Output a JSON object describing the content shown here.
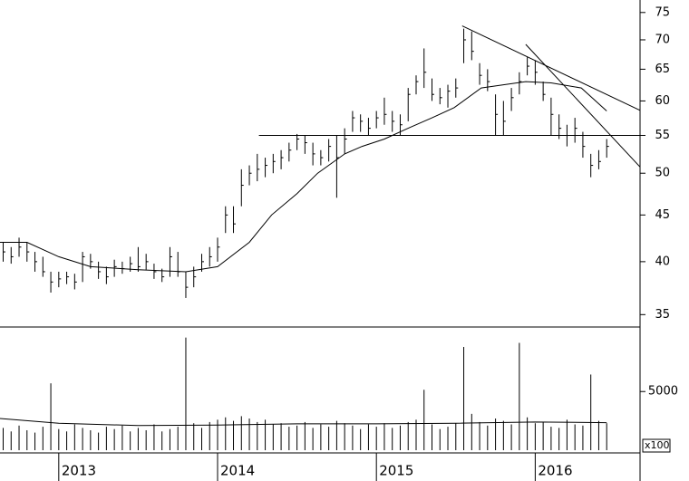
{
  "chart_data": {
    "type": "ohlc",
    "log_scale": true,
    "color": "#000000",
    "x": [
      2012.65,
      2012.7,
      2012.75,
      2012.8,
      2012.85,
      2012.9,
      2012.95,
      2013.0,
      2013.05,
      2013.1,
      2013.15,
      2013.2,
      2013.25,
      2013.3,
      2013.35,
      2013.4,
      2013.45,
      2013.5,
      2013.55,
      2013.6,
      2013.65,
      2013.7,
      2013.75,
      2013.8,
      2013.85,
      2013.9,
      2013.95,
      2014.0,
      2014.05,
      2014.1,
      2014.15,
      2014.2,
      2014.25,
      2014.3,
      2014.35,
      2014.4,
      2014.45,
      2014.5,
      2014.55,
      2014.6,
      2014.65,
      2014.7,
      2014.75,
      2014.8,
      2014.85,
      2014.9,
      2014.95,
      2015.0,
      2015.05,
      2015.1,
      2015.15,
      2015.2,
      2015.25,
      2015.3,
      2015.35,
      2015.4,
      2015.45,
      2015.5,
      2015.55,
      2015.6,
      2015.65,
      2015.7,
      2015.75,
      2015.8,
      2015.85,
      2015.9,
      2015.95,
      2016.0,
      2016.05,
      2016.1,
      2016.15,
      2016.2,
      2016.25,
      2016.3,
      2016.35,
      2016.4,
      2016.45
    ],
    "high": [
      42,
      41.5,
      42.5,
      42,
      41,
      40.5,
      39,
      39,
      39,
      38.8,
      41,
      40.8,
      40,
      39.5,
      40.2,
      40,
      40.5,
      41.5,
      40.8,
      39.8,
      39.3,
      41.5,
      41,
      39,
      39.5,
      40.8,
      41.5,
      42.5,
      46,
      46,
      50.5,
      51,
      52.5,
      52,
      52.5,
      53,
      54,
      55.2,
      55,
      54,
      53,
      54.5,
      55,
      56,
      58.5,
      58,
      57.5,
      58.5,
      60.5,
      58.5,
      58,
      62,
      64,
      68.5,
      63.5,
      62,
      62.5,
      63.5,
      72,
      71.5,
      66,
      65,
      61,
      60,
      62,
      64.5,
      67,
      66.5,
      63,
      60.5,
      58,
      56.5,
      57.5,
      55.5,
      52.5,
      53,
      54.5
    ],
    "low": [
      40,
      39.8,
      40.5,
      40,
      39,
      38.5,
      37,
      37.5,
      37.8,
      37.3,
      38,
      39.3,
      38.3,
      37.8,
      38.5,
      38.8,
      39,
      39,
      39.2,
      38.3,
      38,
      38.5,
      38.5,
      36.5,
      37.5,
      39,
      39.5,
      40,
      43,
      43,
      46,
      48.5,
      49,
      49.5,
      50,
      50.5,
      51.5,
      53,
      52.5,
      51,
      51,
      51.5,
      47,
      52.5,
      55.5,
      55.5,
      55,
      56,
      56.5,
      55.5,
      55,
      57,
      61,
      62,
      60,
      59.5,
      59,
      60.5,
      66,
      66.5,
      62.5,
      61.5,
      55,
      55,
      58.5,
      61,
      64,
      62.5,
      60,
      55,
      54.5,
      53.5,
      54,
      52,
      49.5,
      50.5,
      52
    ],
    "close": [
      41,
      40.5,
      41.5,
      41,
      40,
      39,
      38,
      38.3,
      38.5,
      38,
      40.5,
      40,
      39,
      38.5,
      39.5,
      39.3,
      39.8,
      39.5,
      40,
      39,
      38.5,
      40.5,
      39,
      37.5,
      38.5,
      40,
      40.5,
      41.5,
      45,
      44,
      48.5,
      50,
      50.5,
      51,
      51.5,
      52,
      53,
      54.5,
      54,
      52.5,
      52,
      53.5,
      52,
      54.5,
      57.5,
      57,
      56,
      57.5,
      58,
      57,
      56.5,
      61,
      63,
      64.5,
      61,
      60.5,
      61.5,
      62,
      70,
      68,
      64,
      63,
      58,
      57,
      60.5,
      63,
      65.5,
      64.5,
      61,
      58,
      56,
      55,
      56,
      53.5,
      51,
      51.5,
      53.5
    ],
    "volume": [
      1900,
      1600,
      2100,
      1700,
      1500,
      2000,
      5700,
      1800,
      1600,
      2200,
      1900,
      1700,
      1500,
      2000,
      1800,
      2100,
      1600,
      1900,
      1700,
      2200,
      1600,
      1800,
      2000,
      9600,
      2300,
      1900,
      2400,
      2600,
      2800,
      2500,
      2900,
      2700,
      2400,
      2600,
      2200,
      2300,
      2000,
      2100,
      2400,
      1900,
      2200,
      2000,
      2500,
      2300,
      2100,
      1800,
      2200,
      2000,
      2300,
      1900,
      2100,
      2400,
      2600,
      5150,
      2200,
      1800,
      2000,
      2300,
      8800,
      3100,
      2400,
      2100,
      2700,
      2500,
      2200,
      9150,
      2800,
      2300,
      2400,
      2000,
      1900,
      2600,
      2200,
      2100,
      6450,
      2500,
      2300
    ],
    "ma": {
      "x": [
        2012.63,
        2012.8,
        2013.0,
        2013.2,
        2013.5,
        2013.8,
        2014.0,
        2014.2,
        2014.34,
        2014.5,
        2014.63,
        2014.8,
        2014.91,
        2015.05,
        2015.2,
        2015.35,
        2015.49,
        2015.66,
        2015.8,
        2015.94,
        2016.1,
        2016.29,
        2016.45
      ],
      "values": [
        42,
        42,
        40.5,
        39.5,
        39.2,
        39,
        39.5,
        42,
        45,
        47.5,
        50,
        52.5,
        53.5,
        54.5,
        56,
        57.5,
        59,
        62,
        62.5,
        63,
        62.8,
        62,
        58.5
      ]
    },
    "vol_ma": {
      "x": [
        2012.63,
        2013.0,
        2013.5,
        2014.0,
        2014.5,
        2015.0,
        2015.5,
        2016.0,
        2016.45
      ],
      "values": [
        2700,
        2300,
        2100,
        2150,
        2250,
        2250,
        2300,
        2400,
        2350
      ]
    },
    "lines": [
      {
        "x": [
          2015.54,
          2016.66
        ],
        "values": [
          72.5,
          58.6
        ]
      },
      {
        "x": [
          2015.94,
          2016.66
        ],
        "values": [
          69.2,
          50.8
        ]
      },
      {
        "x": [
          2014.26,
          2016.66
        ],
        "values": [
          55,
          55
        ]
      }
    ],
    "xlim": [
      2012.63,
      2016.66
    ],
    "xticks": [
      2013,
      2014,
      2015,
      2016
    ],
    "ylim": [
      34,
      77.4
    ],
    "yticks": [
      35,
      40,
      45,
      50,
      55,
      60,
      65,
      70,
      75
    ],
    "vol_ylim": [
      0,
      10500
    ],
    "vol_yticks": [
      5000
    ],
    "vol_unit": "x100"
  }
}
